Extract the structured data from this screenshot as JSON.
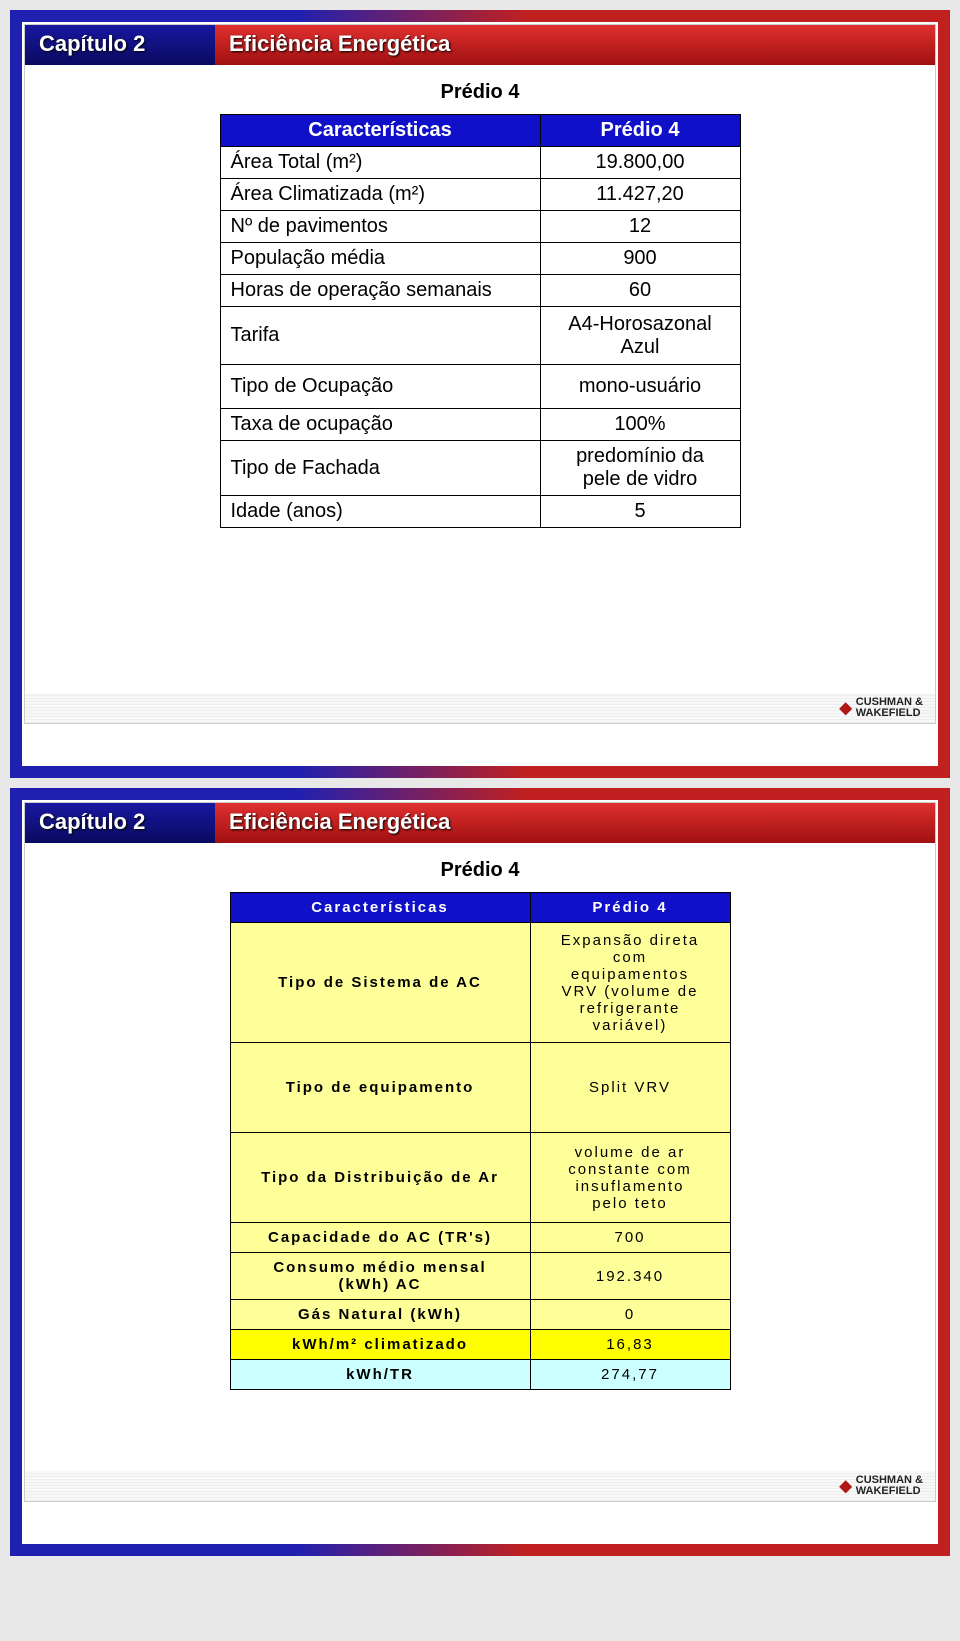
{
  "slide1": {
    "chapter": "Capítulo 2",
    "title": "Eficiência Energética",
    "subtitle": "Prédio 4",
    "table": {
      "header_left": "Características",
      "header_right": "Prédio 4",
      "rows": [
        {
          "label": "Área Total (m²)",
          "value": "19.800,00"
        },
        {
          "label": "Área Climatizada (m²)",
          "value": "11.427,20"
        },
        {
          "label": "Nº de pavimentos",
          "value": "12"
        },
        {
          "label": "População média",
          "value": "900"
        },
        {
          "label": "Horas de operação semanais",
          "value": "60"
        },
        {
          "label": "Tarifa",
          "value": "A4-Horosazonal\nAzul"
        },
        {
          "label": "Tipo de Ocupação",
          "value": "mono-usuário"
        },
        {
          "label": "Taxa de ocupação",
          "value": "100%"
        },
        {
          "label": "Tipo de Fachada",
          "value": "predomínio da\npele de vidro"
        },
        {
          "label": "Idade (anos)",
          "value": "5"
        }
      ],
      "col_widths": [
        "320px",
        "200px"
      ],
      "header_bg": "#1010c8",
      "header_color": "#ffffff",
      "cell_bg": "#ffffff",
      "border_color": "#000000",
      "font_size": 20
    },
    "logo": {
      "brand_top": "CUSHMAN &",
      "brand_bottom": "WAKEFIELD"
    }
  },
  "slide2": {
    "chapter": "Capítulo 2",
    "title": "Eficiência Energética",
    "subtitle": "Prédio 4",
    "table": {
      "header_left": "Características",
      "header_right": "Prédio 4",
      "rows": [
        {
          "label": "Tipo de Sistema de AC",
          "value": "Expansão direta\ncom\nequipamentos\nVRV (volume de\nrefrigerante\nvariável)",
          "bg": "yellow"
        },
        {
          "label": "Tipo de equipamento",
          "value": "Split VRV",
          "bg": "yellow"
        },
        {
          "label": "Tipo da Distribuição de Ar",
          "value": "volume de ar\nconstante com\ninsuflamento\npelo teto",
          "bg": "yellow"
        },
        {
          "label": "Capacidade do AC (TR's)",
          "value": "700",
          "bg": "yellow"
        },
        {
          "label": "Consumo médio mensal\n(kWh) AC",
          "value": "192.340",
          "bg": "yellow"
        },
        {
          "label": "Gás Natural (kWh)",
          "value": "0",
          "bg": "yellow"
        },
        {
          "label": "kWh/m² climatizado",
          "value": "16,83",
          "bg": "yellow2"
        },
        {
          "label": "kWh/TR",
          "value": "274,77",
          "bg": "cyan"
        }
      ],
      "col_widths": [
        "300px",
        "200px"
      ],
      "header_bg": "#1010c8",
      "header_color": "#ffffff",
      "colors": {
        "yellow": "#ffff99",
        "yellow2": "#ffff00",
        "cyan": "#ccffff"
      },
      "border_color": "#000000",
      "font_size": 15,
      "letter_spacing": "2px"
    },
    "logo": {
      "brand_top": "CUSHMAN &",
      "brand_bottom": "WAKEFIELD"
    }
  }
}
